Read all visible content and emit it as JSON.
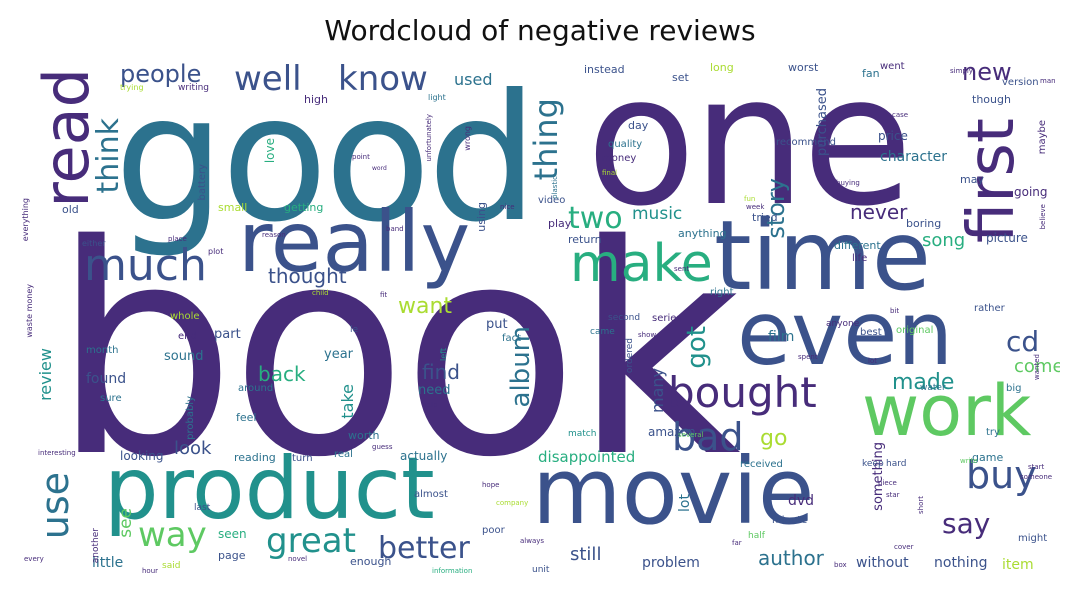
{
  "title": "Wordcloud of negative reviews",
  "colors": {
    "purple": "#472c7a",
    "blue": "#3b528b",
    "teal": "#2c728e",
    "green": "#21918c",
    "sea": "#28ae80",
    "lime": "#5ec962",
    "yellowgreen": "#aadc32",
    "yellow": "#fde725"
  },
  "words": [
    {
      "text": "book"
    },
    {
      "text": "good"
    },
    {
      "text": "one"
    },
    {
      "text": "time"
    },
    {
      "text": "really"
    },
    {
      "text": "movie"
    },
    {
      "text": "product"
    },
    {
      "text": "even"
    },
    {
      "text": "first"
    },
    {
      "text": "read"
    },
    {
      "text": "work"
    },
    {
      "text": "make"
    },
    {
      "text": "much"
    },
    {
      "text": "bought"
    },
    {
      "text": "bad"
    },
    {
      "text": "use"
    },
    {
      "text": "buy"
    },
    {
      "text": "great"
    },
    {
      "text": "better"
    },
    {
      "text": "well"
    },
    {
      "text": "know"
    },
    {
      "text": "think"
    },
    {
      "text": "thing"
    },
    {
      "text": "album"
    },
    {
      "text": "people"
    },
    {
      "text": "new"
    },
    {
      "text": "say"
    },
    {
      "text": "way"
    },
    {
      "text": "two"
    },
    {
      "text": "cd"
    },
    {
      "text": "got"
    },
    {
      "text": "story"
    },
    {
      "text": "want"
    },
    {
      "text": "thought"
    },
    {
      "text": "made"
    },
    {
      "text": "go"
    },
    {
      "text": "author"
    },
    {
      "text": "never"
    },
    {
      "text": "song"
    },
    {
      "text": "music"
    },
    {
      "text": "still"
    },
    {
      "text": "see"
    },
    {
      "text": "find"
    },
    {
      "text": "come"
    },
    {
      "text": "review"
    },
    {
      "text": "look"
    },
    {
      "text": "back"
    },
    {
      "text": "used"
    },
    {
      "text": "disappointed"
    },
    {
      "text": "many"
    },
    {
      "text": "character"
    },
    {
      "text": "purchased"
    },
    {
      "text": "take"
    },
    {
      "text": "little"
    },
    {
      "text": "nothing"
    },
    {
      "text": "without"
    },
    {
      "text": "problem"
    },
    {
      "text": "item"
    },
    {
      "text": "found"
    },
    {
      "text": "film"
    },
    {
      "text": "something"
    },
    {
      "text": "lot"
    },
    {
      "text": "dvd"
    },
    {
      "text": "sound"
    },
    {
      "text": "part"
    },
    {
      "text": "year"
    },
    {
      "text": "put"
    },
    {
      "text": "need"
    },
    {
      "text": "seen"
    },
    {
      "text": "page"
    },
    {
      "text": "enough"
    },
    {
      "text": "amazon"
    },
    {
      "text": "love"
    },
    {
      "text": "actually"
    },
    {
      "text": "reading"
    },
    {
      "text": "looking"
    },
    {
      "text": "instead"
    },
    {
      "text": "long"
    },
    {
      "text": "worst"
    },
    {
      "text": "fan"
    },
    {
      "text": "went"
    },
    {
      "text": "high"
    },
    {
      "text": "writing"
    },
    {
      "text": "trying"
    },
    {
      "text": "set"
    },
    {
      "text": "day"
    },
    {
      "text": "quality"
    },
    {
      "text": "money"
    },
    {
      "text": "price"
    },
    {
      "text": "recommend"
    },
    {
      "text": "battery"
    },
    {
      "text": "small"
    },
    {
      "text": "old"
    },
    {
      "text": "getting"
    },
    {
      "text": "video"
    },
    {
      "text": "play"
    },
    {
      "text": "using"
    },
    {
      "text": "return"
    },
    {
      "text": "anything"
    },
    {
      "text": "different"
    },
    {
      "text": "tried"
    },
    {
      "text": "boring"
    },
    {
      "text": "picture"
    },
    {
      "text": "going"
    },
    {
      "text": "may"
    },
    {
      "text": "though"
    },
    {
      "text": "version"
    },
    {
      "text": "maybe"
    },
    {
      "text": "life"
    },
    {
      "text": "right"
    },
    {
      "text": "anyone"
    },
    {
      "text": "best"
    },
    {
      "text": "original"
    },
    {
      "text": "rather"
    },
    {
      "text": "series"
    },
    {
      "text": "second"
    },
    {
      "text": "came"
    },
    {
      "text": "fact"
    },
    {
      "text": "whole"
    },
    {
      "text": "around"
    },
    {
      "text": "end"
    },
    {
      "text": "month"
    },
    {
      "text": "sure"
    },
    {
      "text": "probably"
    },
    {
      "text": "give"
    },
    {
      "text": "feel"
    },
    {
      "text": "worth"
    },
    {
      "text": "real"
    },
    {
      "text": "turn"
    },
    {
      "text": "almost"
    },
    {
      "text": "poor"
    },
    {
      "text": "last"
    },
    {
      "text": "another"
    },
    {
      "text": "said"
    },
    {
      "text": "unit"
    },
    {
      "text": "received"
    },
    {
      "text": "keep"
    },
    {
      "text": "hard"
    },
    {
      "text": "game"
    },
    {
      "text": "try"
    },
    {
      "text": "might"
    },
    {
      "text": "big"
    },
    {
      "text": "water"
    },
    {
      "text": "minute"
    },
    {
      "text": "half"
    },
    {
      "text": "ordered"
    },
    {
      "text": "match"
    },
    {
      "text": "waste money"
    },
    {
      "text": "either"
    },
    {
      "text": "everything"
    },
    {
      "text": "plot"
    },
    {
      "text": "le"
    },
    {
      "text": "wrong"
    },
    {
      "text": "unfortunately"
    },
    {
      "text": "point"
    },
    {
      "text": "word"
    },
    {
      "text": "light"
    },
    {
      "text": "case"
    },
    {
      "text": "simply"
    },
    {
      "text": "man"
    },
    {
      "text": "wanted"
    },
    {
      "text": "believe"
    },
    {
      "text": "interesting"
    },
    {
      "text": "novel"
    },
    {
      "text": "always"
    },
    {
      "text": "information"
    },
    {
      "text": "company"
    },
    {
      "text": "start"
    },
    {
      "text": "someone"
    },
    {
      "text": "write"
    },
    {
      "text": "piece"
    },
    {
      "text": "star"
    },
    {
      "text": "hope"
    },
    {
      "text": "help"
    },
    {
      "text": "band"
    },
    {
      "text": "place"
    },
    {
      "text": "reason"
    },
    {
      "text": "nice"
    },
    {
      "text": "plastic"
    },
    {
      "text": "buying"
    },
    {
      "text": "show"
    },
    {
      "text": "far"
    },
    {
      "text": "every"
    },
    {
      "text": "hour"
    },
    {
      "text": "lot"
    },
    {
      "text": "short"
    },
    {
      "text": "final"
    },
    {
      "text": "spent"
    },
    {
      "text": "several"
    },
    {
      "text": "sent"
    },
    {
      "text": "child"
    },
    {
      "text": "fit"
    },
    {
      "text": "guess"
    },
    {
      "text": "bit"
    },
    {
      "text": "week"
    },
    {
      "text": "fun"
    },
    {
      "text": "cover"
    },
    {
      "text": "left"
    },
    {
      "text": "box"
    },
    {
      "text": "job"
    }
  ]
}
